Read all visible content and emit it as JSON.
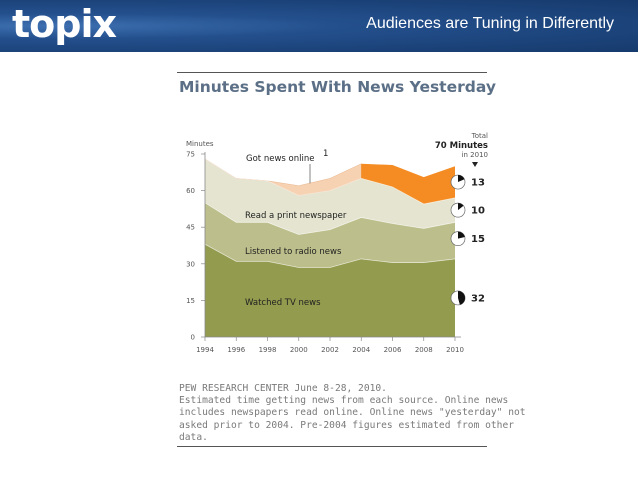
{
  "header": {
    "logo_text": "topix",
    "slide_title": "Audiences are Tuning in Differently"
  },
  "chart_data": {
    "type": "area",
    "stacked": true,
    "title": "Minutes Spent With News Yesterday",
    "ylabel": "Minutes",
    "ylim": [
      0,
      75
    ],
    "yticks": [
      0,
      15,
      30,
      45,
      60,
      75
    ],
    "x": [
      1994,
      1996,
      1998,
      2000,
      2002,
      2004,
      2006,
      2008,
      2010
    ],
    "series": [
      {
        "name": "Watched TV news",
        "color": "#939b4e",
        "values": [
          38,
          31,
          31,
          28.5,
          28.5,
          32,
          30.5,
          30.5,
          32
        ],
        "total_2010": "32"
      },
      {
        "name": "Listened to radio news",
        "color": "#bcbf8b",
        "values": [
          17,
          16,
          16,
          13.5,
          15.5,
          17,
          16,
          14,
          15
        ],
        "total_2010": "15"
      },
      {
        "name": "Read a print newspaper",
        "color": "#e4e4d0",
        "values": [
          18,
          18,
          17,
          16,
          16,
          16,
          15,
          10,
          10
        ],
        "total_2010": "10"
      },
      {
        "name": "Got news online",
        "footnote": "1",
        "color_early": "#f7d2b2",
        "color": "#f48c23",
        "values": [
          0,
          0,
          0,
          4,
          5,
          6,
          9,
          11,
          13
        ],
        "total_2010": "13"
      }
    ],
    "total_label": {
      "line1": "Total",
      "line2": "70 Minutes",
      "line3": "in 2010"
    },
    "source": [
      "PEW RESEARCH  CENTER June 8-28, 2010.",
      "Estimated time getting news from each source. Online news",
      "includes newspapers read online. Online news \"yesterday\" not",
      "asked prior to 2004. Pre-2004 figures estimated from other",
      "data."
    ]
  }
}
